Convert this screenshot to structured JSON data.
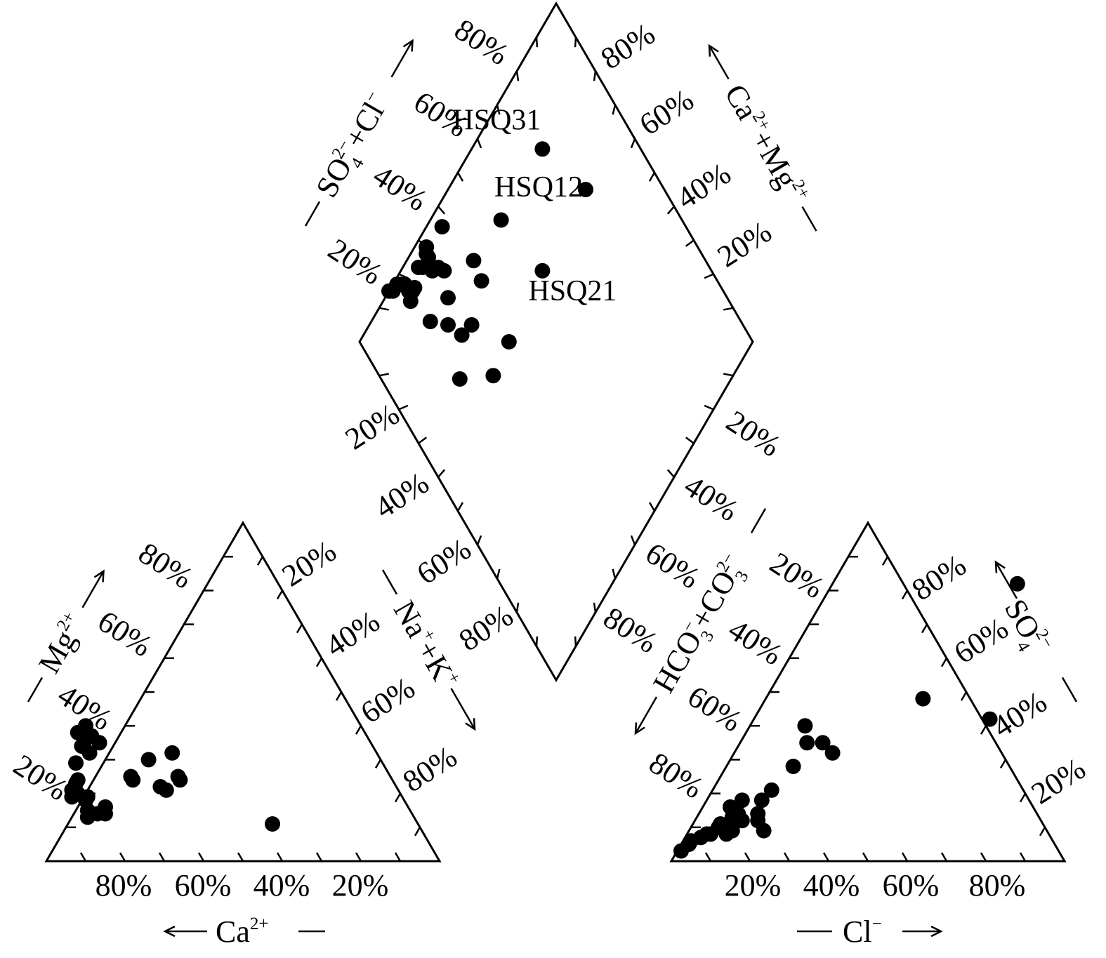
{
  "chart_data": {
    "type": "scatter",
    "title": "",
    "components": {
      "cation_triangle": {
        "axes": {
          "mg": {
            "label": "Mg",
            "sup": "2+",
            "ticks": [
              "20%",
              "40%",
              "60%",
              "80%"
            ]
          },
          "ca": {
            "label": "Ca",
            "sup": "2+",
            "ticks": [
              "80%",
              "60%",
              "40%",
              "20%"
            ]
          },
          "nak": {
            "ticks": [
              "20%",
              "40%",
              "60%",
              "80%"
            ]
          }
        },
        "fields": [
          "Ca",
          "Mg"
        ],
        "points": [
          {
            "Ca": 70,
            "Mg": 40
          },
          {
            "Ca": 74,
            "Mg": 34
          },
          {
            "Ca": 73,
            "Mg": 32
          },
          {
            "Ca": 72,
            "Mg": 36
          },
          {
            "Ca": 73,
            "Mg": 38
          },
          {
            "Ca": 70,
            "Mg": 37
          },
          {
            "Ca": 69,
            "Mg": 35
          },
          {
            "Ca": 78,
            "Mg": 29
          },
          {
            "Ca": 80,
            "Mg": 24
          },
          {
            "Ca": 81,
            "Mg": 23
          },
          {
            "Ca": 83,
            "Mg": 21
          },
          {
            "Ca": 82,
            "Mg": 20
          },
          {
            "Ca": 84,
            "Mg": 19
          },
          {
            "Ca": 80,
            "Mg": 19
          },
          {
            "Ca": 81,
            "Mg": 18
          },
          {
            "Ca": 82,
            "Mg": 15
          },
          {
            "Ca": 77,
            "Mg": 16
          },
          {
            "Ca": 78,
            "Mg": 14
          },
          {
            "Ca": 80,
            "Mg": 14
          },
          {
            "Ca": 83,
            "Mg": 13
          },
          {
            "Ca": 66,
            "Mg": 25
          },
          {
            "Ca": 66,
            "Mg": 24
          },
          {
            "Ca": 59,
            "Mg": 30
          },
          {
            "Ca": 52,
            "Mg": 32
          },
          {
            "Ca": 60,
            "Mg": 22
          },
          {
            "Ca": 54,
            "Mg": 25
          },
          {
            "Ca": 54,
            "Mg": 24
          },
          {
            "Ca": 59,
            "Mg": 21
          },
          {
            "Ca": 37,
            "Mg": 11
          }
        ]
      },
      "anion_triangle": {
        "axes": {
          "cl": {
            "label": "Cl",
            "sup": "−",
            "ticks": [
              "20%",
              "40%",
              "60%",
              "80%"
            ]
          },
          "so4": {
            "label": "SO",
            "sub": "4",
            "sup": "2−",
            "ticks": [
              "20%",
              "40%",
              "60%",
              "80%"
            ]
          },
          "hco3": {
            "ticks": [
              "20%",
              "40%",
              "60%",
              "80%"
            ]
          }
        },
        "fields": [
          "Cl",
          "SO4"
        ],
        "points": [
          {
            "Cl": 1,
            "SO4": 3
          },
          {
            "Cl": 2,
            "SO4": 5
          },
          {
            "Cl": 2,
            "SO4": 6
          },
          {
            "Cl": 4,
            "SO4": 7
          },
          {
            "Cl": 5,
            "SO4": 8
          },
          {
            "Cl": 6,
            "SO4": 8
          },
          {
            "Cl": 7,
            "SO4": 10
          },
          {
            "Cl": 7,
            "SO4": 11
          },
          {
            "Cl": 9,
            "SO4": 10
          },
          {
            "Cl": 9,
            "SO4": 13
          },
          {
            "Cl": 10,
            "SO4": 8
          },
          {
            "Cl": 11,
            "SO4": 9
          },
          {
            "Cl": 7,
            "SO4": 16
          },
          {
            "Cl": 9,
            "SO4": 18
          },
          {
            "Cl": 10,
            "SO4": 14
          },
          {
            "Cl": 12,
            "SO4": 12
          },
          {
            "Cl": 16,
            "SO4": 12
          },
          {
            "Cl": 15,
            "SO4": 14
          },
          {
            "Cl": 14,
            "SO4": 18
          },
          {
            "Cl": 15,
            "SO4": 21
          },
          {
            "Cl": 19,
            "SO4": 9
          },
          {
            "Cl": 17,
            "SO4": 28
          },
          {
            "Cl": 17,
            "SO4": 35
          },
          {
            "Cl": 14,
            "SO4": 40
          },
          {
            "Cl": 21,
            "SO4": 35
          },
          {
            "Cl": 25,
            "SO4": 32
          },
          {
            "Cl": 40,
            "SO4": 48
          },
          {
            "Cl": 47,
            "SO4": 82
          },
          {
            "Cl": 60,
            "SO4": 42
          }
        ]
      },
      "diamond": {
        "axes": {
          "so4cl": {
            "label": "SO",
            "sub": "4",
            "sup": "2−",
            "suffix": "+Cl",
            "suffix_sup": "−",
            "ticks": [
              "20%",
              "40%",
              "60%",
              "80%"
            ]
          },
          "camg": {
            "label": "Ca",
            "sup": "2+",
            "mid": "+Mg",
            "mid_sup": "2+",
            "ticks": [
              "20%",
              "40%",
              "60%",
              "80%"
            ]
          },
          "nak": {
            "label": "Na",
            "sup": "+",
            "suffix": "+K",
            "suffix_sup": "+",
            "ticks": [
              "20%",
              "40%",
              "60%",
              "80%"
            ]
          },
          "hco3co3": {
            "label": "HCO",
            "sub": "3",
            "sup": "−",
            "mid": "+CO",
            "mid_sub": "3",
            "mid_sup": "2−",
            "ticks": [
              "20%",
              "40%",
              "60%",
              "80%"
            ]
          }
        },
        "fields": [
          "SO4Cl",
          "NaK"
        ],
        "points": [
          {
            "SO4Cl": 15,
            "NaK": 0
          },
          {
            "SO4Cl": 16,
            "NaK": 1
          },
          {
            "SO4Cl": 18,
            "NaK": 1
          },
          {
            "SO4Cl": 19,
            "NaK": 2
          },
          {
            "SO4Cl": 20,
            "NaK": 3
          },
          {
            "SO4Cl": 20,
            "NaK": 5
          },
          {
            "SO4Cl": 21,
            "NaK": 6
          },
          {
            "SO4Cl": 19,
            "NaK": 7
          },
          {
            "SO4Cl": 22,
            "NaK": 6
          },
          {
            "SO4Cl": 26,
            "NaK": 4
          },
          {
            "SO4Cl": 27,
            "NaK": 5
          },
          {
            "SO4Cl": 29,
            "NaK": 6
          },
          {
            "SO4Cl": 30,
            "NaK": 5
          },
          {
            "SO4Cl": 30,
            "NaK": 4
          },
          {
            "SO4Cl": 31,
            "NaK": 3
          },
          {
            "SO4Cl": 29,
            "NaK": 8
          },
          {
            "SO4Cl": 31,
            "NaK": 9
          },
          {
            "SO4Cl": 32,
            "NaK": 11
          },
          {
            "SO4Cl": 38,
            "NaK": 4
          },
          {
            "SO4Cl": 41,
            "NaK": 17
          },
          {
            "SO4Cl": 21,
            "NaK": 15
          },
          {
            "SO4Cl": 25,
            "NaK": 20
          },
          {
            "SO4Cl": 29,
            "NaK": 16
          },
          {
            "SO4Cl": 40,
            "NaK": 22
          },
          {
            "SO4Cl": 31,
            "NaK": 26
          },
          {
            "SO4Cl": 27,
            "NaK": 25
          },
          {
            "SO4Cl": 20,
            "NaK": 31
          },
          {
            "SO4Cl": 54,
            "NaK": 18
          },
          {
            "SO4Cl": 29,
            "NaK": 39
          },
          {
            "SO4Cl": 38,
            "NaK": 38
          },
          {
            "SO4Cl": 75,
            "NaK": 18,
            "label": "HSQ31"
          },
          {
            "SO4Cl": 80,
            "NaK": 35,
            "label": "HSQ12"
          },
          {
            "SO4Cl": 57,
            "NaK": 36,
            "label": "HSQ21"
          }
        ]
      }
    }
  }
}
